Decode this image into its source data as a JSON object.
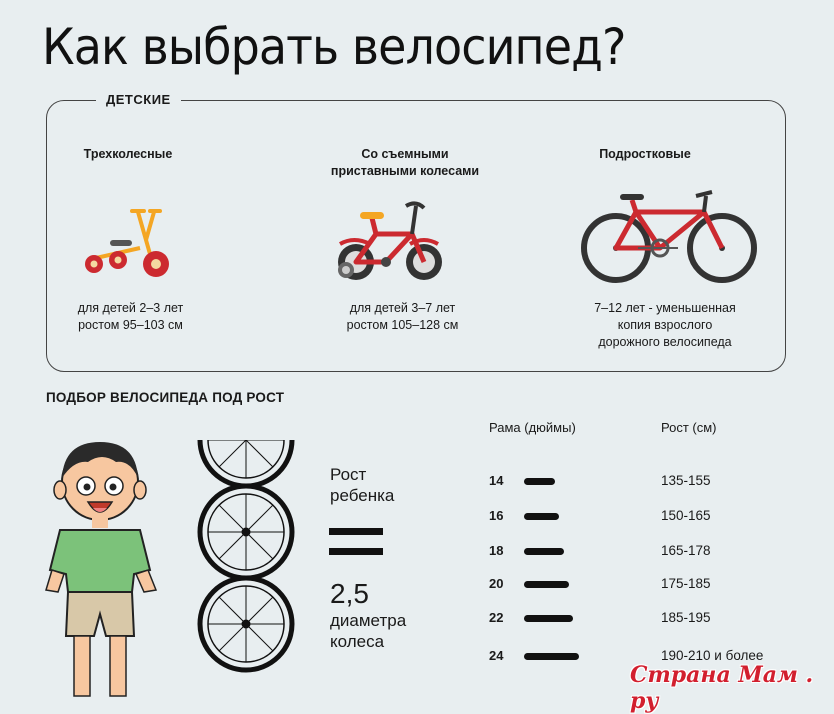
{
  "title": "Как выбрать велосипед?",
  "kids": {
    "label": "ДЕТСКИЕ",
    "columns": [
      {
        "title_1": "Трехколесные",
        "title_2": "",
        "desc_1": "для детей 2–3 лет",
        "desc_2": "ростом 95–103 см",
        "desc_3": ""
      },
      {
        "title_1": "Со съемными",
        "title_2": "приставными колесами",
        "desc_1": "для детей 3–7 лет",
        "desc_2": "ростом 105–128 см",
        "desc_3": ""
      },
      {
        "title_1": "Подростковые",
        "title_2": "",
        "desc_1": "7–12 лет - уменьшенная",
        "desc_2": "копия взрослого",
        "desc_3": "дорожного велосипеда"
      }
    ]
  },
  "size": {
    "title": "ПОДБОР ВЕЛОСИПЕДА ПОД РОСТ",
    "rule_line1": "Рост",
    "rule_line2": "ребенка",
    "rule_number": "2,5",
    "rule_line3": "диаметра",
    "rule_line4": "колеса",
    "col_frame": "Рама (дюймы)",
    "col_height": "Рост (см)",
    "rows": [
      {
        "frame": "14",
        "height": "135-155",
        "bar": 0.55
      },
      {
        "frame": "16",
        "height": "150-165",
        "bar": 0.63
      },
      {
        "frame": "18",
        "height": "165-178",
        "bar": 0.72
      },
      {
        "frame": "20",
        "height": "175-185",
        "bar": 0.8
      },
      {
        "frame": "22",
        "height": "185-195",
        "bar": 0.88
      },
      {
        "frame": "24",
        "height": "190-210 и более",
        "bar": 0.98
      }
    ]
  },
  "watermark": "Страна Мам . ру",
  "colors": {
    "accent_red": "#cc2a30",
    "yellow": "#f4a624",
    "shirt_green": "#7cc27a"
  }
}
